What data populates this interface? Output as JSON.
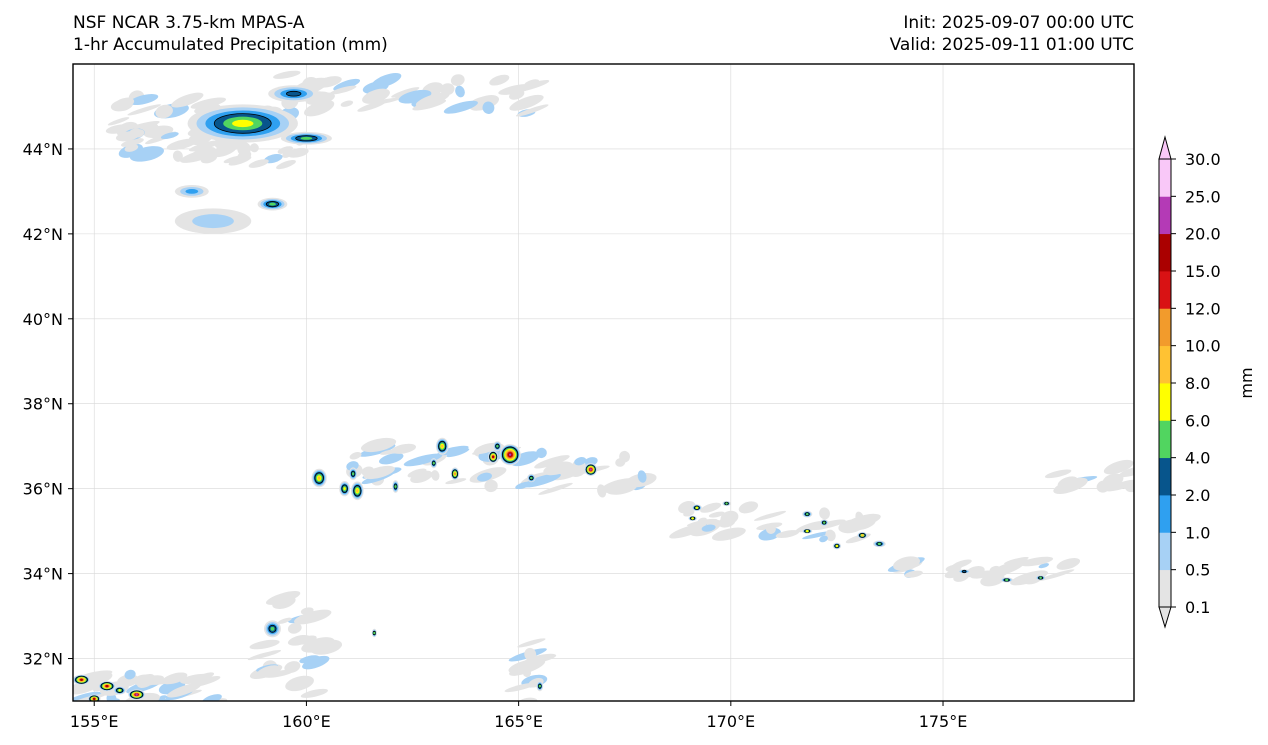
{
  "header": {
    "model": "NSF NCAR 3.75-km MPAS-A",
    "field": "1-hr Accumulated Precipitation (mm)",
    "init": "Init: 2025-09-07 00:00 UTC",
    "valid": "Valid: 2025-09-11 01:00 UTC"
  },
  "map": {
    "lon_range": [
      154.5,
      179.5
    ],
    "lat_range": [
      31.0,
      46.0
    ],
    "lon_ticks": [
      155,
      160,
      165,
      170,
      175
    ],
    "lon_labels": [
      "155°E",
      "160°E",
      "165°E",
      "170°E",
      "175°E"
    ],
    "lat_ticks": [
      32,
      34,
      36,
      38,
      40,
      42,
      44
    ],
    "lat_labels": [
      "32°N",
      "34°N",
      "36°N",
      "38°N",
      "40°N",
      "42°N",
      "44°N"
    ]
  },
  "precip_cells": [
    {
      "lon": 158.5,
      "lat": 44.6,
      "rx": 1.3,
      "ry": 0.45,
      "level": 5
    },
    {
      "lon": 159.7,
      "lat": 45.3,
      "rx": 0.6,
      "ry": 0.2,
      "level": 3
    },
    {
      "lon": 160.0,
      "lat": 44.25,
      "rx": 0.6,
      "ry": 0.15,
      "level": 4
    },
    {
      "lon": 159.2,
      "lat": 42.7,
      "rx": 0.35,
      "ry": 0.15,
      "level": 4
    },
    {
      "lon": 157.3,
      "lat": 43.0,
      "rx": 0.4,
      "ry": 0.15,
      "level": 2
    },
    {
      "lon": 157.8,
      "lat": 42.3,
      "rx": 0.9,
      "ry": 0.3,
      "level": 1
    },
    {
      "lon": 160.3,
      "lat": 36.25,
      "rx": 0.18,
      "ry": 0.22,
      "level": 6
    },
    {
      "lon": 161.2,
      "lat": 35.95,
      "rx": 0.15,
      "ry": 0.22,
      "level": 6
    },
    {
      "lon": 160.9,
      "lat": 36.0,
      "rx": 0.13,
      "ry": 0.18,
      "level": 5
    },
    {
      "lon": 161.1,
      "lat": 36.35,
      "rx": 0.1,
      "ry": 0.15,
      "level": 4
    },
    {
      "lon": 163.2,
      "lat": 37.0,
      "rx": 0.15,
      "ry": 0.2,
      "level": 6
    },
    {
      "lon": 163.5,
      "lat": 36.35,
      "rx": 0.1,
      "ry": 0.15,
      "level": 7
    },
    {
      "lon": 164.4,
      "lat": 36.75,
      "rx": 0.12,
      "ry": 0.15,
      "level": 9
    },
    {
      "lon": 164.8,
      "lat": 36.8,
      "rx": 0.25,
      "ry": 0.25,
      "level": 10
    },
    {
      "lon": 164.5,
      "lat": 37.0,
      "rx": 0.1,
      "ry": 0.12,
      "level": 4
    },
    {
      "lon": 165.3,
      "lat": 36.25,
      "rx": 0.1,
      "ry": 0.1,
      "level": 4
    },
    {
      "lon": 166.7,
      "lat": 36.45,
      "rx": 0.15,
      "ry": 0.15,
      "level": 10
    },
    {
      "lon": 162.1,
      "lat": 36.05,
      "rx": 0.08,
      "ry": 0.15,
      "level": 4
    },
    {
      "lon": 163.0,
      "lat": 36.6,
      "rx": 0.08,
      "ry": 0.12,
      "level": 4
    },
    {
      "lon": 169.2,
      "lat": 35.55,
      "rx": 0.12,
      "ry": 0.08,
      "level": 5
    },
    {
      "lon": 169.9,
      "lat": 35.65,
      "rx": 0.1,
      "ry": 0.06,
      "level": 4
    },
    {
      "lon": 169.1,
      "lat": 35.3,
      "rx": 0.1,
      "ry": 0.06,
      "level": 5
    },
    {
      "lon": 171.8,
      "lat": 35.4,
      "rx": 0.12,
      "ry": 0.08,
      "level": 4
    },
    {
      "lon": 172.2,
      "lat": 35.2,
      "rx": 0.1,
      "ry": 0.08,
      "level": 4
    },
    {
      "lon": 171.8,
      "lat": 35.0,
      "rx": 0.12,
      "ry": 0.06,
      "level": 5
    },
    {
      "lon": 172.5,
      "lat": 34.65,
      "rx": 0.1,
      "ry": 0.08,
      "level": 5
    },
    {
      "lon": 173.1,
      "lat": 34.9,
      "rx": 0.12,
      "ry": 0.08,
      "level": 6
    },
    {
      "lon": 173.5,
      "lat": 34.7,
      "rx": 0.15,
      "ry": 0.08,
      "level": 4
    },
    {
      "lon": 175.5,
      "lat": 34.05,
      "rx": 0.15,
      "ry": 0.05,
      "level": 3
    },
    {
      "lon": 176.5,
      "lat": 33.85,
      "rx": 0.15,
      "ry": 0.06,
      "level": 4
    },
    {
      "lon": 177.3,
      "lat": 33.9,
      "rx": 0.12,
      "ry": 0.06,
      "level": 4
    },
    {
      "lon": 154.7,
      "lat": 31.5,
      "rx": 0.2,
      "ry": 0.12,
      "level": 9
    },
    {
      "lon": 155.3,
      "lat": 31.35,
      "rx": 0.2,
      "ry": 0.12,
      "level": 9
    },
    {
      "lon": 156.0,
      "lat": 31.15,
      "rx": 0.2,
      "ry": 0.12,
      "level": 10
    },
    {
      "lon": 155.6,
      "lat": 31.25,
      "rx": 0.15,
      "ry": 0.1,
      "level": 5
    },
    {
      "lon": 155.0,
      "lat": 31.05,
      "rx": 0.15,
      "ry": 0.1,
      "level": 9
    },
    {
      "lon": 159.2,
      "lat": 32.7,
      "rx": 0.2,
      "ry": 0.2,
      "level": 4
    },
    {
      "lon": 161.6,
      "lat": 32.6,
      "rx": 0.06,
      "ry": 0.1,
      "level": 4
    },
    {
      "lon": 165.5,
      "lat": 31.35,
      "rx": 0.08,
      "ry": 0.12,
      "level": 4
    }
  ],
  "colorbar": {
    "unit_label": "mm",
    "boundary_labels": [
      "0.1",
      "0.5",
      "1.0",
      "2.0",
      "4.0",
      "6.0",
      "8.0",
      "10.0",
      "12.0",
      "15.0",
      "20.0",
      "25.0",
      "30.0"
    ],
    "colors": [
      "#e4e4e4",
      "#a7d1f5",
      "#2fa0f0",
      "#07558c",
      "#51d560",
      "#ffff00",
      "#ffc233",
      "#f29b2c",
      "#d91214",
      "#aa0000",
      "#b43ab6",
      "#f9c8f8"
    ]
  }
}
